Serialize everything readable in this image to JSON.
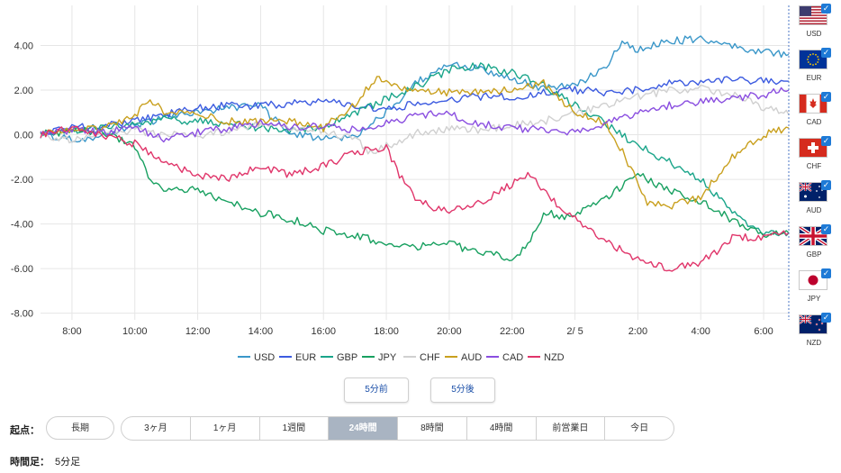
{
  "chart_data": {
    "type": "line",
    "y_ticks": [
      "4.00",
      "2.00",
      "0.00",
      "-2.00",
      "-4.00",
      "-6.00",
      "-8.00"
    ],
    "y_tick_values": [
      4,
      2,
      0,
      -2,
      -4,
      -6,
      -8
    ],
    "ylim": [
      -8.3,
      5.8
    ],
    "x_tick_labels": [
      "8:00",
      "10:00",
      "12:00",
      "14:00",
      "16:00",
      "18:00",
      "20:00",
      "22:00",
      "2/ 5",
      "2:00",
      "4:00",
      "6:00"
    ],
    "x_tick_positions": [
      1,
      3,
      5,
      7,
      9,
      11,
      13,
      15,
      17,
      19,
      21,
      23
    ],
    "xlim": [
      0,
      23.8
    ],
    "series": [
      {
        "name": "USD",
        "color": "#3a97c9",
        "values": [
          [
            0,
            0
          ],
          [
            1,
            -0.2
          ],
          [
            2,
            -0.1
          ],
          [
            3,
            0.4
          ],
          [
            4,
            0.8
          ],
          [
            5,
            1.0
          ],
          [
            6,
            1.2
          ],
          [
            7,
            1.4
          ],
          [
            7.3,
            0.8
          ],
          [
            8,
            0.1
          ],
          [
            9,
            -0.2
          ],
          [
            10,
            -0.1
          ],
          [
            11,
            1.0
          ],
          [
            12,
            2.4
          ],
          [
            13,
            3.1
          ],
          [
            14,
            3.0
          ],
          [
            15,
            2.5
          ],
          [
            16,
            2.1
          ],
          [
            17,
            2.2
          ],
          [
            18,
            3.0
          ],
          [
            18.5,
            4.2
          ],
          [
            19,
            3.8
          ],
          [
            20,
            4.2
          ],
          [
            21,
            4.3
          ],
          [
            22,
            4.0
          ],
          [
            23,
            3.7
          ],
          [
            23.8,
            3.6
          ]
        ]
      },
      {
        "name": "EUR",
        "color": "#3c5be0",
        "values": [
          [
            0,
            0
          ],
          [
            1,
            0.3
          ],
          [
            2,
            0.4
          ],
          [
            3,
            0.6
          ],
          [
            4,
            0.9
          ],
          [
            5,
            1.2
          ],
          [
            6,
            1.3
          ],
          [
            7,
            1.3
          ],
          [
            8,
            1.4
          ],
          [
            9,
            1.5
          ],
          [
            10,
            1.3
          ],
          [
            11,
            1.1
          ],
          [
            12,
            1.4
          ],
          [
            13,
            1.6
          ],
          [
            14,
            1.7
          ],
          [
            15,
            1.7
          ],
          [
            16,
            1.9
          ],
          [
            17,
            2.0
          ],
          [
            18,
            1.9
          ],
          [
            19,
            2.0
          ],
          [
            20,
            2.3
          ],
          [
            21,
            2.4
          ],
          [
            22,
            2.5
          ],
          [
            23,
            2.4
          ],
          [
            23.8,
            2.4
          ]
        ]
      },
      {
        "name": "GBP",
        "color": "#1aa58a",
        "values": [
          [
            0,
            0
          ],
          [
            1,
            0.2
          ],
          [
            2,
            0.3
          ],
          [
            3,
            0.5
          ],
          [
            4,
            0.7
          ],
          [
            5,
            0.6
          ],
          [
            6,
            0.5
          ],
          [
            7,
            0.3
          ],
          [
            8,
            0.2
          ],
          [
            9,
            0.3
          ],
          [
            10,
            1.0
          ],
          [
            11,
            1.6
          ],
          [
            12,
            2.2
          ],
          [
            13,
            2.9
          ],
          [
            14,
            3.1
          ],
          [
            15,
            2.8
          ],
          [
            16,
            2.2
          ],
          [
            17,
            1.3
          ],
          [
            18,
            0.5
          ],
          [
            19,
            -0.5
          ],
          [
            20,
            -1.2
          ],
          [
            21,
            -2.0
          ],
          [
            22,
            -3.5
          ],
          [
            23,
            -4.4
          ],
          [
            23.8,
            -4.4
          ]
        ]
      },
      {
        "name": "JPY",
        "color": "#18a060",
        "values": [
          [
            0,
            0
          ],
          [
            1,
            0.2
          ],
          [
            2,
            0.1
          ],
          [
            3,
            -0.5
          ],
          [
            3.6,
            -2.3
          ],
          [
            4,
            -2.4
          ],
          [
            5,
            -2.5
          ],
          [
            6,
            -3.0
          ],
          [
            7,
            -3.5
          ],
          [
            8,
            -3.8
          ],
          [
            9,
            -4.3
          ],
          [
            10,
            -4.5
          ],
          [
            11,
            -4.9
          ],
          [
            12,
            -5.0
          ],
          [
            13,
            -4.9
          ],
          [
            14,
            -5.3
          ],
          [
            15,
            -5.5
          ],
          [
            15.5,
            -5.0
          ],
          [
            16,
            -3.5
          ],
          [
            17,
            -3.7
          ],
          [
            17.5,
            -3.2
          ],
          [
            18,
            -2.8
          ],
          [
            19,
            -1.8
          ],
          [
            20,
            -2.5
          ],
          [
            21,
            -3.0
          ],
          [
            22,
            -3.8
          ],
          [
            23,
            -4.5
          ],
          [
            23.8,
            -4.4
          ]
        ]
      },
      {
        "name": "CHF",
        "color": "#d0d0d0",
        "values": [
          [
            0,
            0
          ],
          [
            1,
            -0.3
          ],
          [
            2,
            0.1
          ],
          [
            3,
            0.2
          ],
          [
            4,
            0.0
          ],
          [
            5,
            -0.1
          ],
          [
            6,
            0.2
          ],
          [
            7,
            0.5
          ],
          [
            8,
            0.3
          ],
          [
            9,
            0.2
          ],
          [
            10,
            -0.2
          ],
          [
            10.5,
            -0.8
          ],
          [
            11,
            -0.5
          ],
          [
            12,
            0.1
          ],
          [
            13,
            0.3
          ],
          [
            14,
            0.2
          ],
          [
            15,
            0.4
          ],
          [
            16,
            0.6
          ],
          [
            17,
            1.0
          ],
          [
            18,
            1.3
          ],
          [
            19,
            1.7
          ],
          [
            20,
            2.0
          ],
          [
            21,
            2.1
          ],
          [
            22,
            1.8
          ],
          [
            23,
            1.2
          ],
          [
            23.8,
            0.9
          ]
        ]
      },
      {
        "name": "AUD",
        "color": "#c9a01e",
        "values": [
          [
            0,
            0
          ],
          [
            1,
            0.2
          ],
          [
            2,
            0.3
          ],
          [
            3,
            0.8
          ],
          [
            3.4,
            1.6
          ],
          [
            4,
            1.0
          ],
          [
            5,
            0.9
          ],
          [
            6,
            0.6
          ],
          [
            7,
            0.6
          ],
          [
            8,
            0.6
          ],
          [
            9,
            0.3
          ],
          [
            10,
            1.4
          ],
          [
            10.7,
            2.6
          ],
          [
            11,
            2.3
          ],
          [
            12,
            2.0
          ],
          [
            13,
            1.9
          ],
          [
            14,
            1.9
          ],
          [
            15,
            2.0
          ],
          [
            16,
            2.3
          ],
          [
            17,
            1.0
          ],
          [
            18,
            0.5
          ],
          [
            18.6,
            -1.0
          ],
          [
            19.3,
            -3.0
          ],
          [
            20,
            -3.2
          ],
          [
            21,
            -2.8
          ],
          [
            22,
            -1.0
          ],
          [
            23,
            0.0
          ],
          [
            23.8,
            0.3
          ]
        ]
      },
      {
        "name": "CAD",
        "color": "#8a4ee0",
        "values": [
          [
            0,
            0
          ],
          [
            1,
            0.2
          ],
          [
            2,
            0.1
          ],
          [
            3,
            0.3
          ],
          [
            4,
            -0.2
          ],
          [
            5,
            0.1
          ],
          [
            6,
            0.3
          ],
          [
            7,
            0.5
          ],
          [
            8,
            0.3
          ],
          [
            9,
            0.4
          ],
          [
            10,
            0.2
          ],
          [
            11,
            0.5
          ],
          [
            12,
            0.9
          ],
          [
            13,
            0.9
          ],
          [
            14,
            0.5
          ],
          [
            15,
            0.3
          ],
          [
            16,
            0.2
          ],
          [
            17,
            0.1
          ],
          [
            18,
            0.5
          ],
          [
            19,
            1.0
          ],
          [
            20,
            1.3
          ],
          [
            21,
            1.5
          ],
          [
            22,
            1.6
          ],
          [
            23,
            1.8
          ],
          [
            23.8,
            2.0
          ]
        ]
      },
      {
        "name": "NZD",
        "color": "#e0356a",
        "values": [
          [
            0,
            0
          ],
          [
            1,
            0.3
          ],
          [
            2,
            0.0
          ],
          [
            3,
            -0.4
          ],
          [
            3.6,
            -1.0
          ],
          [
            4,
            -1.3
          ],
          [
            5,
            -1.8
          ],
          [
            6,
            -2.0
          ],
          [
            7,
            -1.4
          ],
          [
            8,
            -1.8
          ],
          [
            9,
            -1.4
          ],
          [
            10,
            -0.8
          ],
          [
            11,
            -0.6
          ],
          [
            11.5,
            -2.0
          ],
          [
            12,
            -3.0
          ],
          [
            13,
            -3.5
          ],
          [
            14,
            -3.0
          ],
          [
            15,
            -2.2
          ],
          [
            15.5,
            -1.8
          ],
          [
            16,
            -2.4
          ],
          [
            16.5,
            -3.3
          ],
          [
            17,
            -3.8
          ],
          [
            18,
            -4.8
          ],
          [
            19,
            -5.6
          ],
          [
            20,
            -6.0
          ],
          [
            21,
            -5.7
          ],
          [
            21.6,
            -5.2
          ],
          [
            22,
            -4.6
          ],
          [
            23,
            -4.6
          ],
          [
            23.8,
            -4.4
          ]
        ]
      }
    ]
  },
  "currencies": [
    {
      "code": "USD",
      "checked": "✓"
    },
    {
      "code": "EUR",
      "checked": "✓"
    },
    {
      "code": "CAD",
      "checked": "✓"
    },
    {
      "code": "CHF",
      "checked": "✓"
    },
    {
      "code": "AUD",
      "checked": "✓"
    },
    {
      "code": "GBP",
      "checked": "✓"
    },
    {
      "code": "JPY",
      "checked": "✓"
    },
    {
      "code": "NZD",
      "checked": "✓"
    }
  ],
  "nav": {
    "prev_label": "5分前",
    "next_label": "5分後"
  },
  "start": {
    "label": "起点：",
    "long_label": "長期",
    "ranges": [
      "3ヶ月",
      "1ヶ月",
      "1週間",
      "24時間",
      "8時間",
      "4時間",
      "前営業日",
      "今日"
    ],
    "active_range": "24時間"
  },
  "timeframe": {
    "label": "時間足：",
    "value": "5分足"
  }
}
